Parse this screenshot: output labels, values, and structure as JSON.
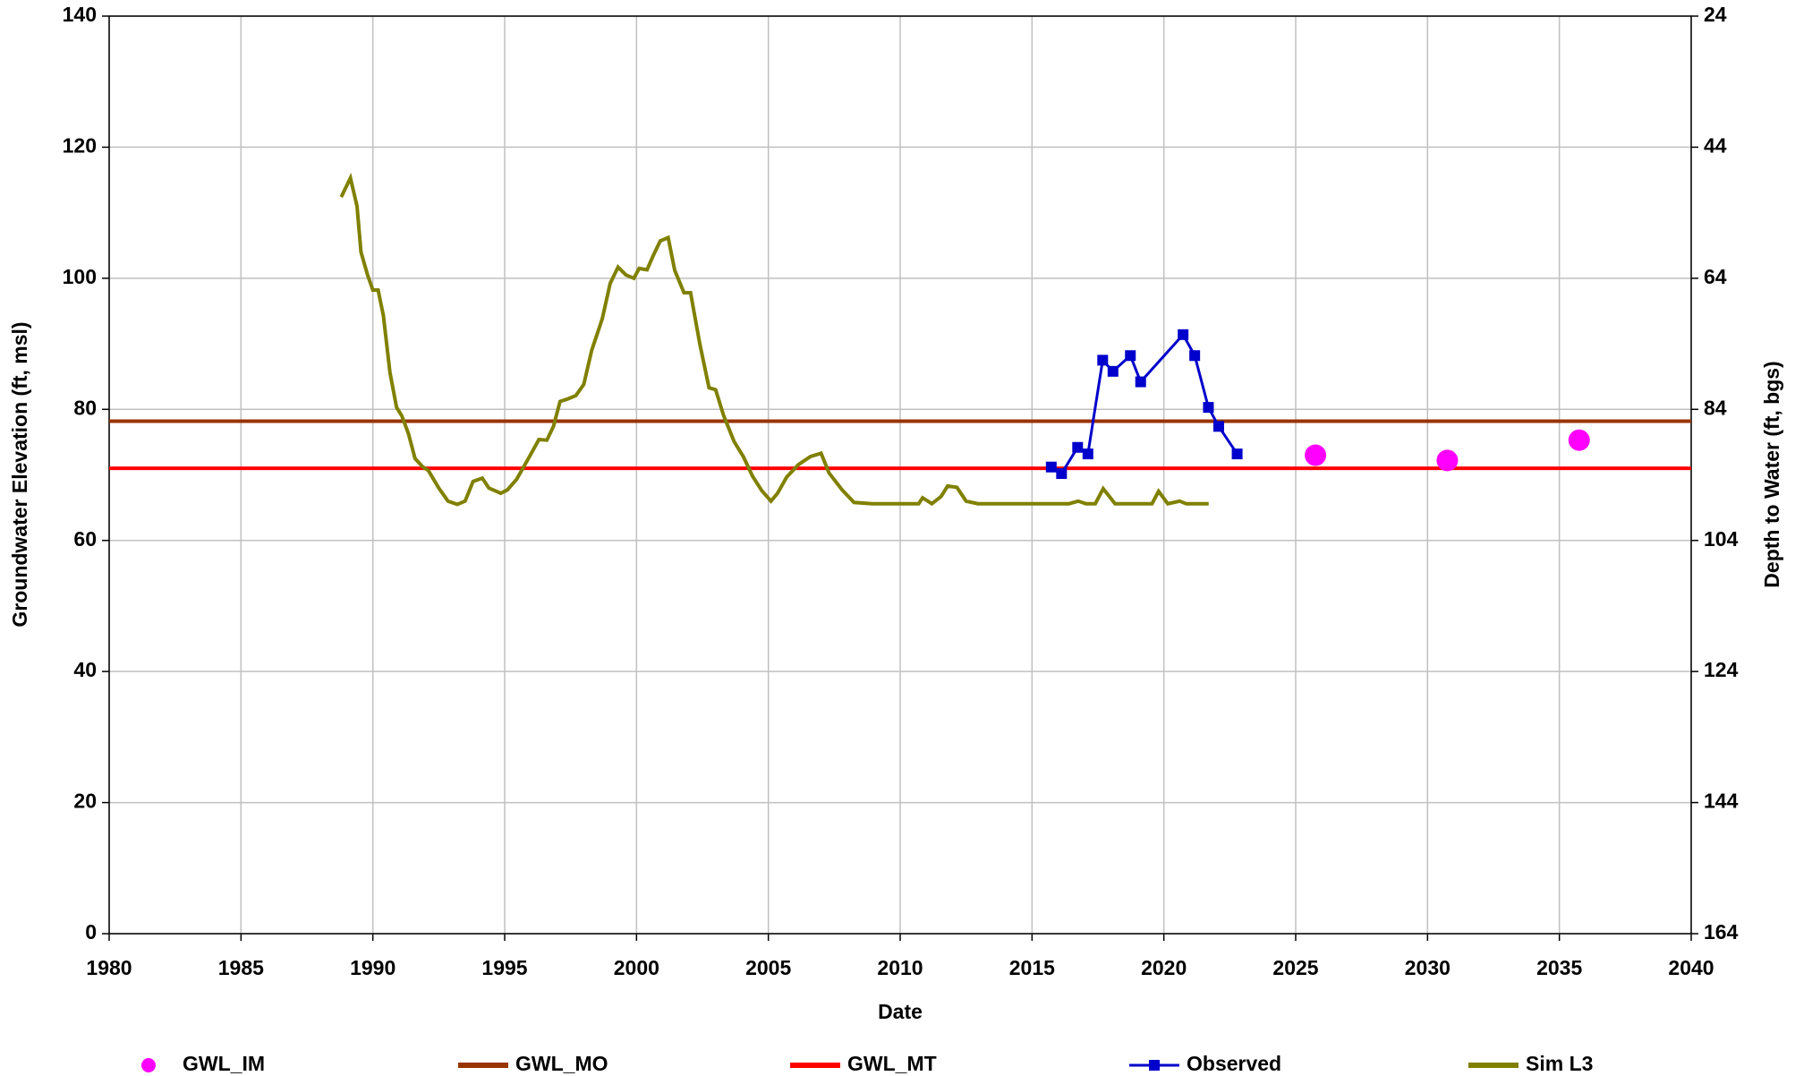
{
  "chart_data": {
    "type": "line",
    "x_label": "Date",
    "y_label": "Groundwater Elevation (ft, msl)",
    "y2_label": "Depth to Water (ft, bgs)",
    "xlim": [
      1980,
      2040
    ],
    "xticks": [
      1980,
      1985,
      1990,
      1995,
      2000,
      2005,
      2010,
      2015,
      2020,
      2025,
      2030,
      2035,
      2040
    ],
    "ylim": [
      0,
      140
    ],
    "yticks": [
      0,
      20,
      40,
      60,
      80,
      100,
      120,
      140
    ],
    "y2lim": [
      164,
      24
    ],
    "y2ticks": [
      164,
      144,
      124,
      104,
      84,
      64,
      44,
      24
    ],
    "grid": true,
    "legend": "bottom",
    "series": [
      {
        "name": "GWL_IM",
        "type": "scatter",
        "color": "#ff00ff",
        "x": [
          2025.75,
          2030.75,
          2035.75
        ],
        "values": [
          73,
          72.2,
          75.3
        ]
      },
      {
        "name": "GWL_MO",
        "type": "line",
        "color": "#993300",
        "x": [
          1980,
          2040
        ],
        "values": [
          78.2,
          78.2
        ]
      },
      {
        "name": "GWL_MT",
        "type": "line",
        "color": "#ff0000",
        "x": [
          1980,
          2040
        ],
        "values": [
          71,
          71
        ]
      },
      {
        "name": "Observed",
        "type": "line",
        "markers": true,
        "color": "#0000cc",
        "x": [
          2015.73,
          2016.12,
          2016.73,
          2017.12,
          2017.68,
          2018.07,
          2018.73,
          2019.12,
          2020.73,
          2021.17,
          2021.69,
          2022.08,
          2022.78
        ],
        "values": [
          71.2,
          70.2,
          74.2,
          73.2,
          87.5,
          85.8,
          88.2,
          84.2,
          91.4,
          88.2,
          80.3,
          77.4,
          73.2
        ]
      },
      {
        "name": "Sim L3",
        "type": "line",
        "color": "#808000",
        "x": [
          1988.8,
          1989.15,
          1989.4,
          1989.55,
          1989.8,
          1990.0,
          1990.2,
          1990.4,
          1990.65,
          1990.9,
          1991.1,
          1991.35,
          1991.6,
          1991.9,
          1992.1,
          1992.5,
          1992.85,
          1993.2,
          1993.5,
          1993.8,
          1994.15,
          1994.4,
          1994.85,
          1995.1,
          1995.45,
          1995.9,
          1996.3,
          1996.6,
          1996.85,
          1997.1,
          1997.4,
          1997.7,
          1998.0,
          1998.3,
          1998.7,
          1999.0,
          1999.3,
          1999.6,
          1999.9,
          2000.1,
          2000.4,
          2000.65,
          2000.9,
          2001.2,
          2001.45,
          2001.8,
          2002.05,
          2002.4,
          2002.75,
          2003.0,
          2003.3,
          2003.7,
          2004.05,
          2004.4,
          2004.75,
          2005.1,
          2005.35,
          2005.7,
          2006.15,
          2006.6,
          2007.0,
          2007.3,
          2007.8,
          2008.25,
          2008.95,
          2010.7,
          2010.85,
          2011.2,
          2011.55,
          2011.8,
          2012.15,
          2012.5,
          2012.95,
          2016.4,
          2016.75,
          2017.05,
          2017.4,
          2017.7,
          2018.15,
          2019.55,
          2019.8,
          2020.15,
          2020.6,
          2020.85,
          2021.7
        ],
        "values": [
          112.4,
          115.3,
          111,
          104,
          100.5,
          98.2,
          98.2,
          94.3,
          85.6,
          80.3,
          79,
          76.3,
          72.5,
          71.2,
          70.7,
          68,
          66,
          65.5,
          66,
          69,
          69.5,
          68,
          67.2,
          67.7,
          69.3,
          72.5,
          75.4,
          75.3,
          77.4,
          81.2,
          81.6,
          82.1,
          83.8,
          89,
          93.8,
          99.2,
          101.7,
          100.5,
          100,
          101.5,
          101.3,
          103.6,
          105.7,
          106.2,
          101.2,
          97.8,
          97.8,
          90,
          83.3,
          83,
          79.1,
          75.1,
          72.8,
          69.8,
          67.6,
          66,
          67.2,
          69.7,
          71.6,
          72.8,
          73.3,
          70.3,
          67.7,
          65.8,
          65.6,
          65.6,
          66.5,
          65.6,
          66.7,
          68.3,
          68.1,
          66,
          65.6,
          65.6,
          66,
          65.6,
          65.6,
          67.9,
          65.6,
          65.6,
          67.5,
          65.6,
          66,
          65.6,
          65.6
        ]
      }
    ]
  }
}
